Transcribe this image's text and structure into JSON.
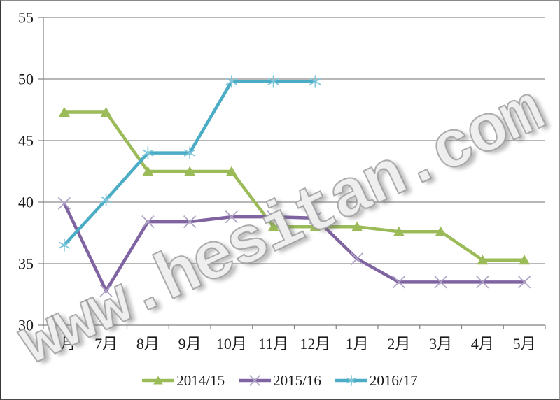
{
  "watermark": {
    "text": "www.hesitan.com"
  },
  "chart_data": {
    "type": "line",
    "title": "",
    "xlabel": "",
    "ylabel": "",
    "grid": true,
    "legend_position": "bottom",
    "categories": [
      "6月",
      "7月",
      "8月",
      "9月",
      "10月",
      "11月",
      "12月",
      "1月",
      "2月",
      "3月",
      "4月",
      "5月"
    ],
    "y_axis": {
      "min": 30,
      "max": 55,
      "step": 5,
      "ticks": [
        "55",
        "50",
        "45",
        "40",
        "35",
        "30"
      ]
    },
    "axis_color": "#808080",
    "grid_color": "#8c8c8c",
    "text_color": "#1a1a1a",
    "series": [
      {
        "name": "2014/15",
        "color": "#9BBB59",
        "marker": "triangle",
        "marker_color": "#9BBB59",
        "values": [
          47.3,
          47.3,
          42.5,
          42.5,
          42.5,
          38.0,
          38.0,
          38.0,
          37.6,
          37.6,
          35.3,
          35.3
        ]
      },
      {
        "name": "2015/16",
        "color": "#8064A2",
        "marker": "x",
        "marker_color": "#AFA3C5",
        "values": [
          39.9,
          32.8,
          38.4,
          38.4,
          38.8,
          38.8,
          38.7,
          35.4,
          33.5,
          33.5,
          33.5,
          33.5
        ]
      },
      {
        "name": "2016/17",
        "color": "#4BACC6",
        "marker": "asterisk",
        "marker_color": "#7EC6D9",
        "values": [
          36.5,
          40.2,
          44.0,
          44.0,
          49.8,
          49.8,
          49.8
        ]
      }
    ]
  }
}
